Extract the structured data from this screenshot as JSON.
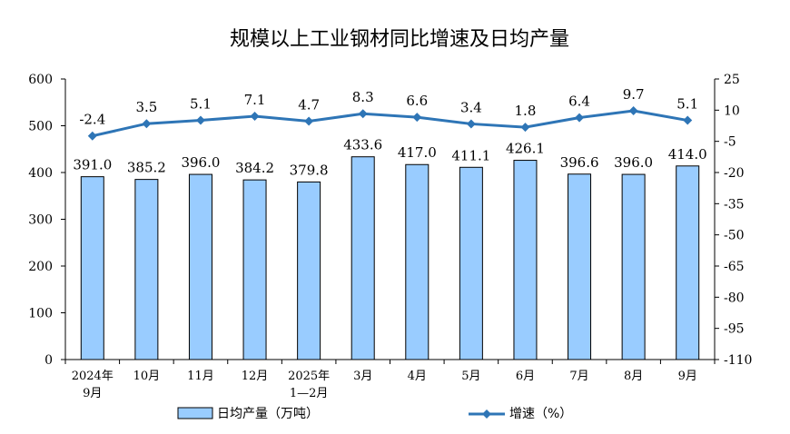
{
  "chart_data": {
    "type": "bar",
    "title": "规模以上工业钢材同比增速及日均产量",
    "categories": [
      [
        "2024年",
        "9月"
      ],
      [
        "10月"
      ],
      [
        "11月"
      ],
      [
        "12月"
      ],
      [
        "2025年",
        "1—2月"
      ],
      [
        "3月"
      ],
      [
        "4月"
      ],
      [
        "5月"
      ],
      [
        "6月"
      ],
      [
        "7月"
      ],
      [
        "8月"
      ],
      [
        "9月"
      ]
    ],
    "series": [
      {
        "name": "日均产量（万吨）",
        "kind": "bar",
        "axis": "left",
        "color": "#99ccff",
        "values": [
          391.0,
          385.2,
          396.0,
          384.2,
          379.8,
          433.6,
          417.0,
          411.1,
          426.1,
          396.6,
          396.0,
          414.0
        ],
        "labels": [
          "391.0",
          "385.2",
          "396.0",
          "384.2",
          "379.8",
          "433.6",
          "417.0",
          "411.1",
          "426.1",
          "396.6",
          "396.0",
          "414.0"
        ]
      },
      {
        "name": "增速（%）",
        "kind": "line",
        "axis": "right",
        "color": "#2e75b6",
        "values": [
          -2.4,
          3.5,
          5.1,
          7.1,
          4.7,
          8.3,
          6.6,
          3.4,
          1.8,
          6.4,
          9.7,
          5.1
        ],
        "labels": [
          "-2.4",
          "3.5",
          "5.1",
          "7.1",
          "4.7",
          "8.3",
          "6.6",
          "3.4",
          "1.8",
          "6.4",
          "9.7",
          "5.1"
        ]
      }
    ],
    "y_left": {
      "ylim": [
        0,
        600
      ],
      "ticks": [
        0,
        100,
        200,
        300,
        400,
        500,
        600
      ],
      "tick_labels": [
        "0",
        "100",
        "200",
        "300",
        "400",
        "500",
        "600"
      ]
    },
    "y_right": {
      "ylim": [
        -110,
        25
      ],
      "ticks": [
        25,
        10,
        -5,
        -20,
        -35,
        -50,
        -65,
        -80,
        -95,
        -110
      ],
      "tick_labels": [
        "25",
        "10",
        "-5",
        "-20",
        "-35",
        "-50",
        "-65",
        "-80",
        "-95",
        "-110"
      ]
    },
    "grid": false,
    "legend_position": "bottom"
  }
}
